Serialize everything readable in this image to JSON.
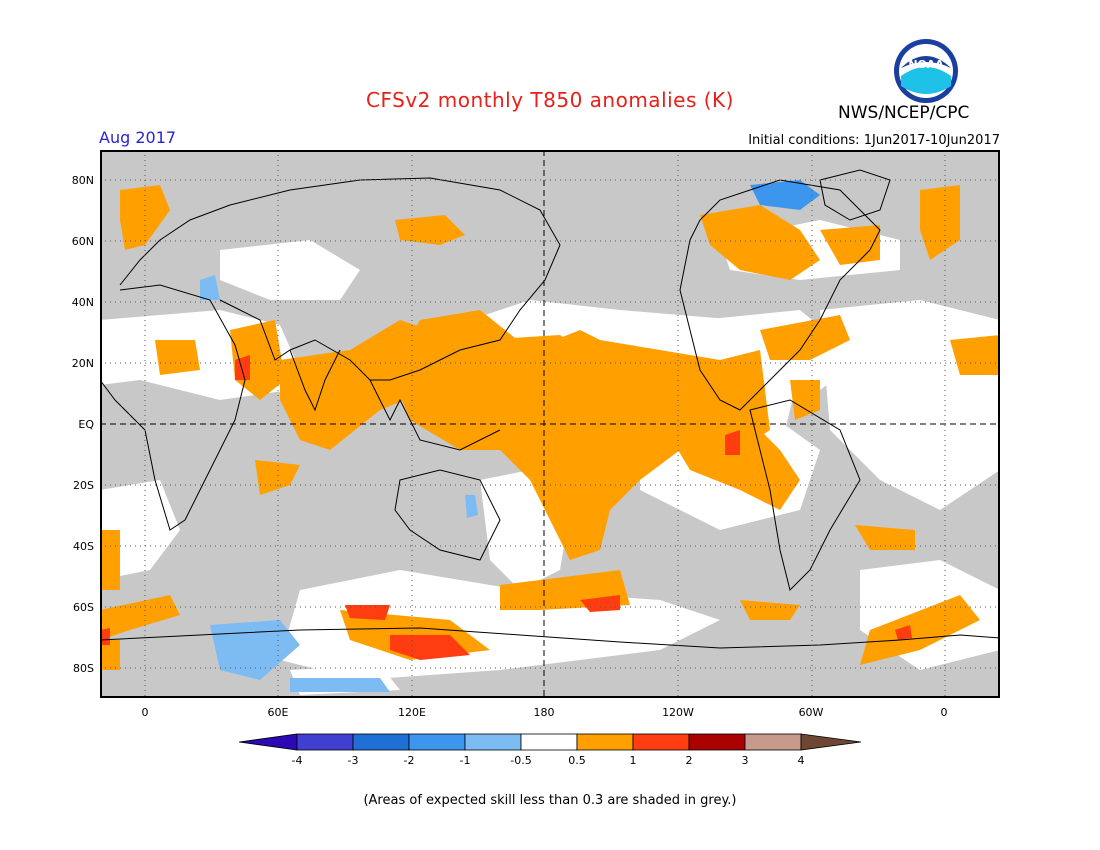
{
  "header": {
    "title": "CFSv2 monthly T850 anomalies (K)",
    "agency": "NWS/NCEP/CPC",
    "valid_month": "Aug 2017",
    "initial_conditions": "Initial conditions: 1Jun2017-10Jun2017",
    "logo_text": "NOAA"
  },
  "axes": {
    "lat_labels": [
      "80N",
      "60N",
      "40N",
      "20N",
      "EQ",
      "20S",
      "40S",
      "60S",
      "80S"
    ],
    "lon_labels": [
      "0",
      "60E",
      "120E",
      "180",
      "120W",
      "60W",
      "0"
    ]
  },
  "legend": {
    "labels": [
      "-4",
      "-3",
      "-2",
      "-1",
      "-0.5",
      "0.5",
      "1",
      "2",
      "3",
      "4"
    ],
    "colors": [
      "#2b0ab5",
      "#4040d0",
      "#1f6fd6",
      "#3d96ee",
      "#7cbcf2",
      "#ffffff",
      "#ff9f00",
      "#ff3d10",
      "#a90000",
      "#c69a8c",
      "#6e4634"
    ]
  },
  "footnote": "(Areas of expected skill less than 0.3 are shaded in grey.)",
  "colors": {
    "grey_low_skill": "#c8c8c8",
    "title": "#e8201a",
    "valid_month": "#2626d6"
  }
}
